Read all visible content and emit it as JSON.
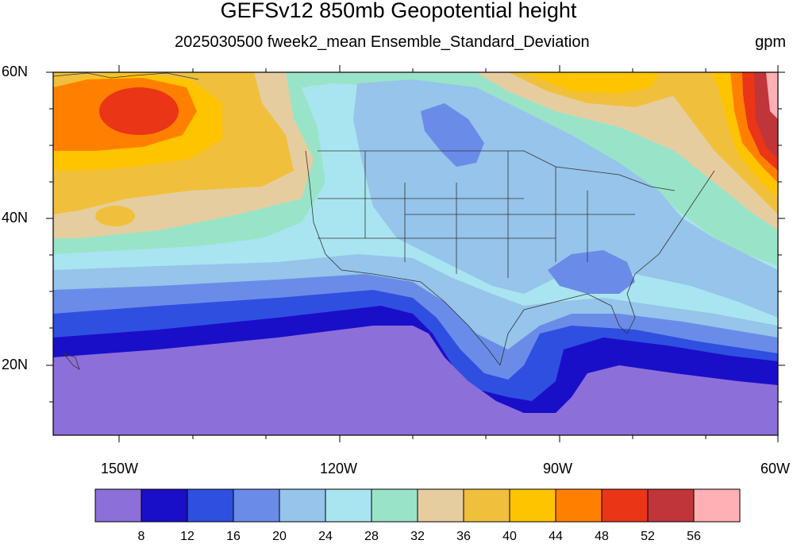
{
  "title": "GEFSv12 850mb Geopotential height",
  "subtitle": "2025030500 fweek2_mean Ensemble_Standard_Deviation",
  "units": "gpm",
  "map": {
    "lat_labels": [
      "60N",
      "40N",
      "20N"
    ],
    "lon_labels": [
      "150W",
      "120W",
      "90W",
      "60W"
    ]
  },
  "colorbar": {
    "levels": [
      "8",
      "12",
      "16",
      "20",
      "24",
      "28",
      "32",
      "36",
      "40",
      "44",
      "48",
      "52",
      "56"
    ],
    "colors": [
      "#8c6fd9",
      "#1a0fc8",
      "#2f4fe0",
      "#6a8ce8",
      "#96c4ea",
      "#a9e5f0",
      "#99e4c8",
      "#e6cda0",
      "#f0c03c",
      "#ffc400",
      "#ff8000",
      "#ea3516",
      "#c0353a",
      "#ffb0b4"
    ]
  }
}
